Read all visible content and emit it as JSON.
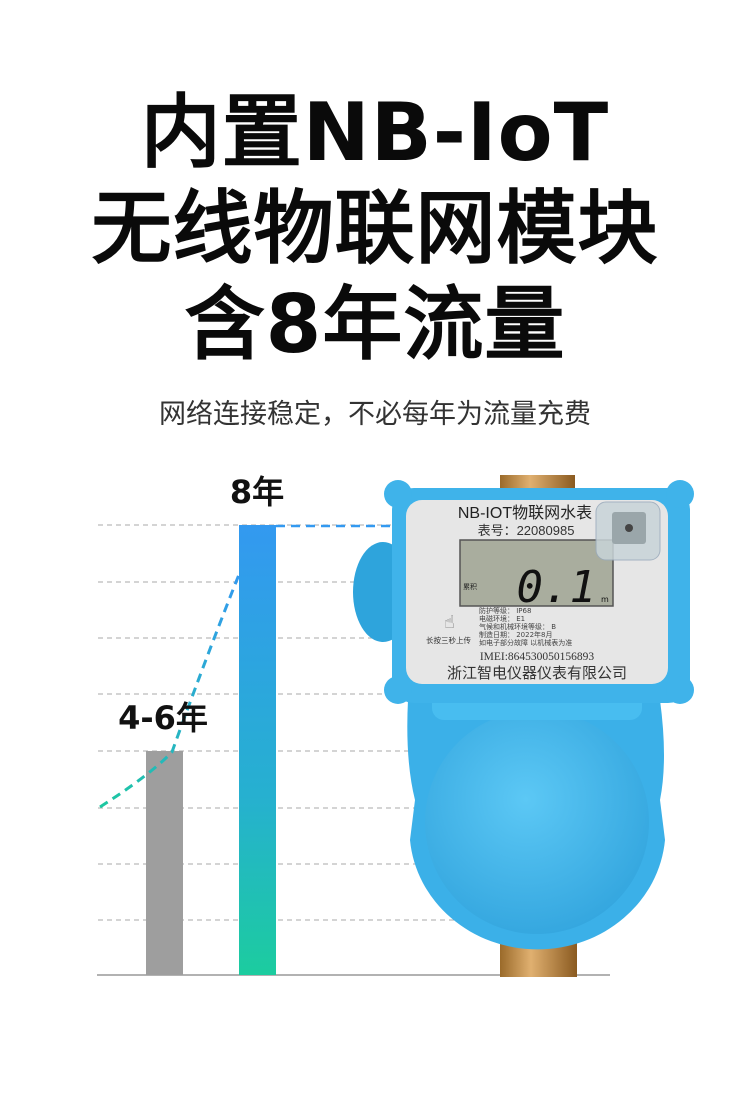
{
  "headline": {
    "line1": "内置NB-IoT",
    "line2": "无线物联网模块",
    "line3": "含8年流量"
  },
  "subtitle": "网络连接稳定，不必每年为流量充费",
  "comparison": {
    "bars": [
      {
        "label": "4-6年",
        "color": "#9e9e9e"
      },
      {
        "label": "8年",
        "color_top": "#3399f0",
        "color_bottom": "#1ccc9f"
      }
    ]
  },
  "meter": {
    "title": "NB-IOT物联网水表",
    "serial": "表号：22080985",
    "lcd_label": "累积",
    "lcd_value": "0.1",
    "lcd_unit": "m",
    "button_hint": "长按三秒上传",
    "specs": [
      "防护等级：  IP68",
      "电磁环境：    E1",
      "气候和机械环境等级：   B",
      "制造日期：  2022年8月",
      "如电子部分故障 以机械表为准"
    ],
    "imei": "IMEI:864530050156893",
    "maker": "浙江智电仪器仪表有限公司",
    "body_color": "#3fb3ea"
  }
}
